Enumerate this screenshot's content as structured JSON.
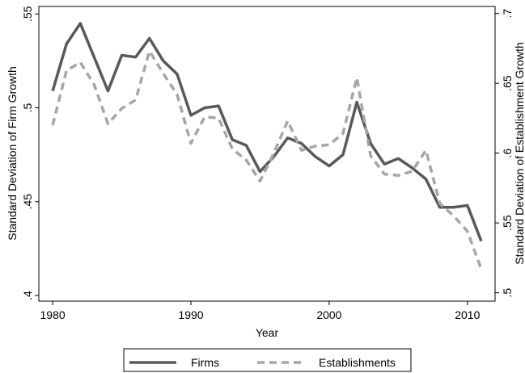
{
  "chart_data": {
    "type": "line",
    "xlabel": "Year",
    "ylabel": "Standard Deviation of Firm Growth",
    "y2label": "Standard Deviation of Establishment Growth",
    "x": [
      1980,
      1981,
      1982,
      1983,
      1984,
      1985,
      1986,
      1987,
      1988,
      1989,
      1990,
      1991,
      1992,
      1993,
      1994,
      1995,
      1996,
      1997,
      1998,
      1999,
      2000,
      2001,
      2002,
      2003,
      2004,
      2005,
      2006,
      2007,
      2008,
      2009,
      2010,
      2011
    ],
    "series": [
      {
        "name": "Firms",
        "color": "#595959",
        "dashed": false,
        "axis": "y",
        "values": [
          0.509,
          0.534,
          0.545,
          0.527,
          0.509,
          0.528,
          0.527,
          0.537,
          0.525,
          0.518,
          0.496,
          0.5,
          0.501,
          0.483,
          0.48,
          0.466,
          0.474,
          0.484,
          0.481,
          0.474,
          0.469,
          0.475,
          0.503,
          0.481,
          0.47,
          0.473,
          0.468,
          0.462,
          0.447,
          0.447,
          0.448,
          0.429
        ]
      },
      {
        "name": "Establishments",
        "color": "#a6a6a6",
        "dashed": true,
        "axis": "y2",
        "values": [
          0.62,
          0.659,
          0.665,
          0.649,
          0.621,
          0.632,
          0.638,
          0.673,
          0.657,
          0.642,
          0.607,
          0.626,
          0.625,
          0.603,
          0.595,
          0.58,
          0.6,
          0.623,
          0.602,
          0.605,
          0.606,
          0.614,
          0.654,
          0.598,
          0.585,
          0.584,
          0.587,
          0.602,
          0.564,
          0.555,
          0.544,
          0.517
        ]
      }
    ],
    "xlim": [
      1979,
      2012
    ],
    "xticks": [
      1980,
      1990,
      2000,
      2010
    ],
    "ylim": [
      0.397,
      0.554
    ],
    "yticks": [
      {
        "value": 0.4,
        "label": ".4"
      },
      {
        "value": 0.45,
        "label": ".45"
      },
      {
        "value": 0.5,
        "label": ".5"
      },
      {
        "value": 0.55,
        "label": ".55"
      }
    ],
    "y2lim": [
      0.494,
      0.705
    ],
    "y2ticks": [
      {
        "value": 0.5,
        "label": ".5"
      },
      {
        "value": 0.55,
        "label": ".55"
      },
      {
        "value": 0.6,
        "label": ".6"
      },
      {
        "value": 0.65,
        "label": ".65"
      },
      {
        "value": 0.7,
        "label": ".7"
      }
    ],
    "legend": "bottom"
  }
}
